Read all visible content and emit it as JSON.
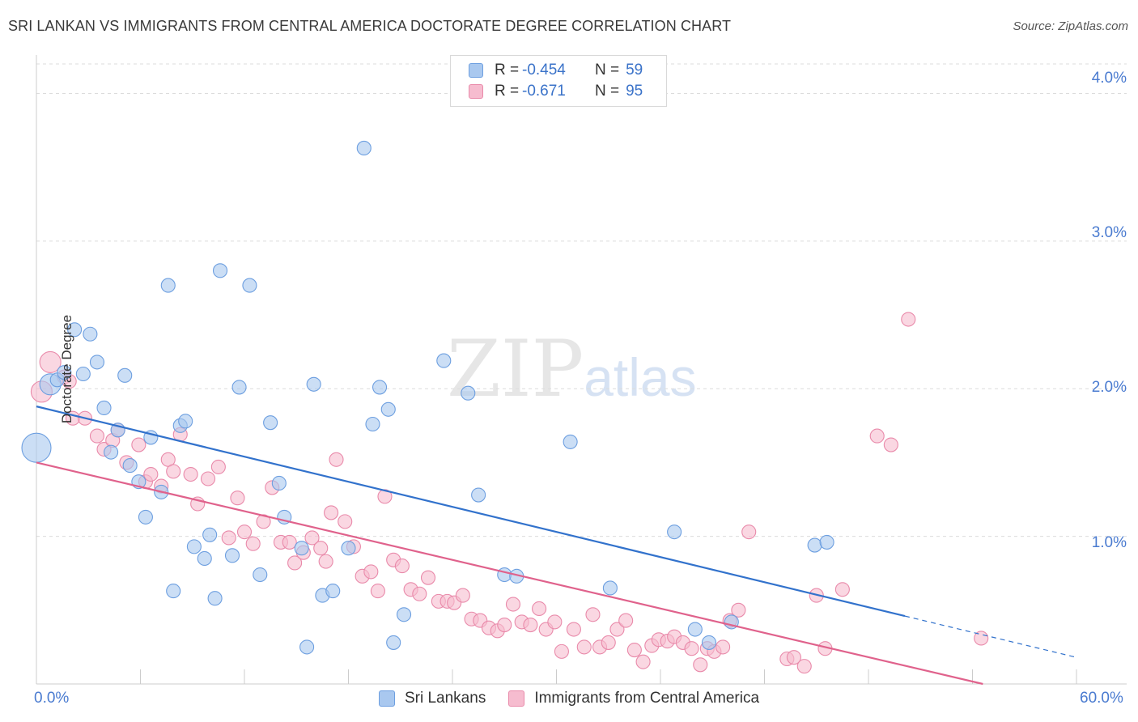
{
  "title": "SRI LANKAN VS IMMIGRANTS FROM CENTRAL AMERICA DOCTORATE DEGREE CORRELATION CHART",
  "source": "Source: ZipAtlas.com",
  "watermark": {
    "zip": "ZIP",
    "atlas": "atlas"
  },
  "legend_top": [
    {
      "label": "R =",
      "r": "-0.454",
      "n_label": "N =",
      "n": "59"
    },
    {
      "label": "R =",
      "r": "-0.671",
      "n_label": "N =",
      "n": "95"
    }
  ],
  "colors": {
    "blue_fill": "#a9c8ef",
    "blue_stroke": "#6d9fe0",
    "blue_line": "#3272cc",
    "pink_fill": "#f6bccf",
    "pink_stroke": "#e98aaa",
    "pink_line": "#e0628c",
    "tick_text": "#4a7bd0",
    "grid": "#dcdcdc"
  },
  "chart_data": {
    "type": "scatter",
    "title": "SRI LANKAN VS IMMIGRANTS FROM CENTRAL AMERICA DOCTORATE DEGREE CORRELATION CHART",
    "xlabel": "",
    "ylabel": "Doctorate Degree",
    "xlim": [
      0,
      60
    ],
    "ylim": [
      0,
      4.2
    ],
    "x_tick_labels": [
      "0.0%",
      "60.0%"
    ],
    "y_ticks": [
      1.0,
      2.0,
      3.0,
      4.0
    ],
    "y_tick_labels": [
      "1.0%",
      "2.0%",
      "3.0%",
      "4.0%"
    ],
    "grid": "horizontal dashed",
    "legend_position": "bottom",
    "series": [
      {
        "name": "Sri Lankans",
        "color": "#a9c8ef",
        "r": -0.454,
        "n": 59,
        "trend": {
          "x0": 0,
          "y0": 1.88,
          "x1": 50.1,
          "y1": 0.46,
          "dash_to_x": 60,
          "dash_to_y": 0.18
        },
        "points": [
          [
            0.0,
            1.6,
            3
          ],
          [
            0.8,
            2.03,
            2
          ],
          [
            1.2,
            2.06,
            1
          ],
          [
            1.6,
            2.11,
            1
          ],
          [
            2.2,
            2.4,
            1
          ],
          [
            2.7,
            2.1,
            1
          ],
          [
            3.1,
            2.37,
            1
          ],
          [
            3.5,
            2.18,
            1
          ],
          [
            3.9,
            1.87,
            1
          ],
          [
            4.3,
            1.57,
            1
          ],
          [
            4.7,
            1.72,
            1
          ],
          [
            5.1,
            2.09,
            1
          ],
          [
            5.4,
            1.48,
            1
          ],
          [
            5.9,
            1.37,
            1
          ],
          [
            6.3,
            1.13,
            1
          ],
          [
            6.6,
            1.67,
            1
          ],
          [
            7.2,
            1.3,
            1
          ],
          [
            7.6,
            2.7,
            1
          ],
          [
            7.9,
            0.63,
            1
          ],
          [
            8.3,
            1.75,
            1
          ],
          [
            8.6,
            1.78,
            1
          ],
          [
            9.1,
            0.93,
            1
          ],
          [
            9.7,
            0.85,
            1
          ],
          [
            10.0,
            1.01,
            1
          ],
          [
            10.3,
            0.58,
            1
          ],
          [
            10.6,
            2.8,
            1
          ],
          [
            11.3,
            0.87,
            1
          ],
          [
            11.7,
            2.01,
            1
          ],
          [
            12.3,
            2.7,
            1
          ],
          [
            12.9,
            0.74,
            1
          ],
          [
            13.5,
            1.77,
            1
          ],
          [
            14.0,
            1.36,
            1
          ],
          [
            14.3,
            1.13,
            1
          ],
          [
            15.3,
            0.92,
            1
          ],
          [
            15.6,
            0.25,
            1
          ],
          [
            16.0,
            2.03,
            1
          ],
          [
            16.5,
            0.6,
            1
          ],
          [
            17.1,
            0.63,
            1
          ],
          [
            18.0,
            0.92,
            1
          ],
          [
            18.9,
            3.63,
            1
          ],
          [
            19.4,
            1.76,
            1
          ],
          [
            19.8,
            2.01,
            1
          ],
          [
            20.3,
            1.86,
            1
          ],
          [
            20.6,
            0.28,
            1
          ],
          [
            21.2,
            0.47,
            1
          ],
          [
            23.5,
            2.19,
            1
          ],
          [
            24.9,
            1.97,
            1
          ],
          [
            25.5,
            1.28,
            1
          ],
          [
            27.0,
            0.74,
            1
          ],
          [
            27.7,
            0.73,
            1
          ],
          [
            30.8,
            1.64,
            1
          ],
          [
            33.1,
            0.65,
            1
          ],
          [
            36.8,
            1.03,
            1
          ],
          [
            38.0,
            0.37,
            1
          ],
          [
            38.8,
            0.28,
            1
          ],
          [
            40.1,
            0.42,
            1
          ],
          [
            44.9,
            0.94,
            1
          ],
          [
            45.6,
            0.96,
            1
          ]
        ]
      },
      {
        "name": "Immigrants from Central America",
        "color": "#f6bccf",
        "r": -0.671,
        "n": 95,
        "trend": {
          "x0": 0,
          "y0": 1.5,
          "x1": 54.6,
          "y1": 0.0
        },
        "points": [
          [
            0.3,
            1.98,
            2
          ],
          [
            0.8,
            2.18,
            2
          ],
          [
            1.6,
            2.08,
            1
          ],
          [
            1.9,
            2.05,
            1
          ],
          [
            2.1,
            1.8,
            1
          ],
          [
            2.8,
            1.8,
            1
          ],
          [
            3.5,
            1.68,
            1
          ],
          [
            3.9,
            1.59,
            1
          ],
          [
            4.4,
            1.65,
            1
          ],
          [
            4.7,
            1.72,
            1
          ],
          [
            5.2,
            1.5,
            1
          ],
          [
            5.9,
            1.62,
            1
          ],
          [
            6.3,
            1.37,
            1
          ],
          [
            6.6,
            1.42,
            1
          ],
          [
            7.2,
            1.34,
            1
          ],
          [
            7.6,
            1.52,
            1
          ],
          [
            7.9,
            1.44,
            1
          ],
          [
            8.3,
            1.69,
            1
          ],
          [
            8.9,
            1.42,
            1
          ],
          [
            9.3,
            1.22,
            1
          ],
          [
            9.9,
            1.39,
            1
          ],
          [
            10.5,
            1.47,
            1
          ],
          [
            11.1,
            0.99,
            1
          ],
          [
            11.6,
            1.26,
            1
          ],
          [
            12.0,
            1.03,
            1
          ],
          [
            12.5,
            0.95,
            1
          ],
          [
            13.1,
            1.1,
            1
          ],
          [
            13.6,
            1.33,
            1
          ],
          [
            14.1,
            0.96,
            1
          ],
          [
            14.6,
            0.96,
            1
          ],
          [
            14.9,
            0.82,
            1
          ],
          [
            15.4,
            0.89,
            1
          ],
          [
            15.9,
            0.99,
            1
          ],
          [
            16.4,
            0.92,
            1
          ],
          [
            16.7,
            0.83,
            1
          ],
          [
            17.0,
            1.16,
            1
          ],
          [
            17.3,
            1.52,
            1
          ],
          [
            17.8,
            1.1,
            1
          ],
          [
            18.3,
            0.93,
            1
          ],
          [
            18.8,
            0.73,
            1
          ],
          [
            19.3,
            0.76,
            1
          ],
          [
            19.7,
            0.63,
            1
          ],
          [
            20.1,
            1.27,
            1
          ],
          [
            20.6,
            0.84,
            1
          ],
          [
            21.1,
            0.8,
            1
          ],
          [
            21.6,
            0.64,
            1
          ],
          [
            22.1,
            0.61,
            1
          ],
          [
            22.6,
            0.72,
            1
          ],
          [
            23.2,
            0.56,
            1
          ],
          [
            23.7,
            0.56,
            1
          ],
          [
            24.1,
            0.55,
            1
          ],
          [
            24.6,
            0.6,
            1
          ],
          [
            25.1,
            0.44,
            1
          ],
          [
            25.6,
            0.43,
            1
          ],
          [
            26.1,
            0.38,
            1
          ],
          [
            26.6,
            0.36,
            1
          ],
          [
            27.0,
            0.4,
            1
          ],
          [
            27.5,
            0.54,
            1
          ],
          [
            28.0,
            0.42,
            1
          ],
          [
            28.5,
            0.4,
            1
          ],
          [
            29.0,
            0.51,
            1
          ],
          [
            29.4,
            0.37,
            1
          ],
          [
            29.9,
            0.42,
            1
          ],
          [
            30.3,
            0.22,
            1
          ],
          [
            31.0,
            0.37,
            1
          ],
          [
            31.6,
            0.25,
            1
          ],
          [
            32.1,
            0.47,
            1
          ],
          [
            32.5,
            0.25,
            1
          ],
          [
            33.0,
            0.28,
            1
          ],
          [
            33.5,
            0.37,
            1
          ],
          [
            34.0,
            0.43,
            1
          ],
          [
            34.5,
            0.23,
            1
          ],
          [
            35.0,
            0.15,
            1
          ],
          [
            35.5,
            0.26,
            1
          ],
          [
            35.9,
            0.3,
            1
          ],
          [
            36.4,
            0.29,
            1
          ],
          [
            36.8,
            0.32,
            1
          ],
          [
            37.3,
            0.28,
            1
          ],
          [
            37.8,
            0.24,
            1
          ],
          [
            38.3,
            0.13,
            1
          ],
          [
            38.7,
            0.24,
            1
          ],
          [
            39.1,
            0.22,
            1
          ],
          [
            39.6,
            0.25,
            1
          ],
          [
            40.0,
            0.43,
            1
          ],
          [
            40.5,
            0.5,
            1
          ],
          [
            41.1,
            1.03,
            1
          ],
          [
            43.3,
            0.17,
            1
          ],
          [
            43.7,
            0.18,
            1
          ],
          [
            44.3,
            0.12,
            1
          ],
          [
            45.0,
            0.6,
            1
          ],
          [
            45.5,
            0.24,
            1
          ],
          [
            46.5,
            0.64,
            1
          ],
          [
            48.5,
            1.68,
            1
          ],
          [
            49.3,
            1.62,
            1
          ],
          [
            50.3,
            2.47,
            1
          ],
          [
            54.5,
            0.31,
            1
          ]
        ]
      }
    ]
  }
}
